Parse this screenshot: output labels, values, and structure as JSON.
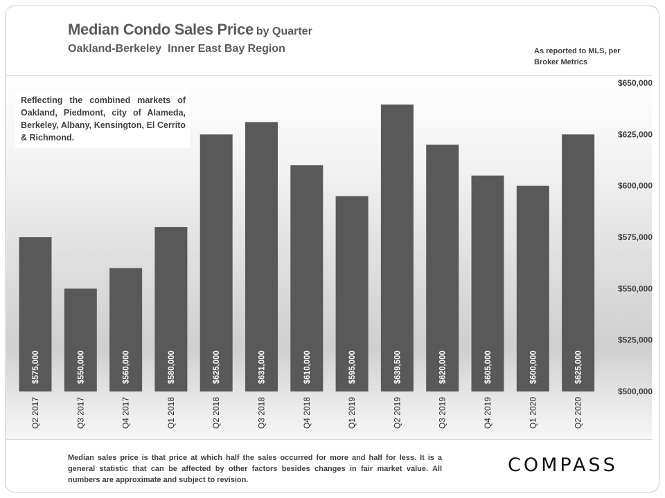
{
  "header": {
    "title": "Median Condo Sales Price",
    "title_suffix": "by Quarter",
    "subtitle": "Oakland-Berkeley  Inner East Bay Region",
    "source_note": "As reported to MLS, per Broker Metrics"
  },
  "info_box": "Reflecting the combined markets of Oakland, Piedmont, city of Alameda, Berkeley, Albany, Kensington, El Cerrito & Richmond.",
  "footnote": "Median sales price is that price at which half the sales occurred for more and half for less. It is a general statistic that can be affected by other factors besides changes in fair market value. All numbers are approximate and subject to revision.",
  "logo": "COMPASS",
  "chart_data": {
    "type": "bar",
    "categories": [
      "Q2 2017",
      "Q3 2017",
      "Q4 2017",
      "Q1 2018",
      "Q2 2018",
      "Q3 2018",
      "Q4 2018",
      "Q1 2019",
      "Q2 2019",
      "Q3 2019",
      "Q4 2019",
      "Q1 2020",
      "Q2 2020"
    ],
    "values": [
      575000,
      550000,
      560000,
      580000,
      625000,
      631000,
      610000,
      595000,
      639500,
      620000,
      605000,
      600000,
      625000
    ],
    "data_labels": [
      "$575,000",
      "$550,000",
      "$560,000",
      "$580,000",
      "$625,000",
      "$631,000",
      "$610,000",
      "$595,000",
      "$639,500",
      "$620,000",
      "$605,000",
      "$600,000",
      "$625,000"
    ],
    "ylim": [
      500000,
      650000
    ],
    "yticks": [
      500000,
      525000,
      550000,
      575000,
      600000,
      625000,
      650000
    ],
    "ytick_labels": [
      "$500,000",
      "$525,000",
      "$550,000",
      "$575,000",
      "$600,000",
      "$625,000",
      "$650,000"
    ],
    "y_axis_side": "right",
    "grid": false,
    "bar_color": "#595959",
    "label_color": "#ffffff"
  }
}
